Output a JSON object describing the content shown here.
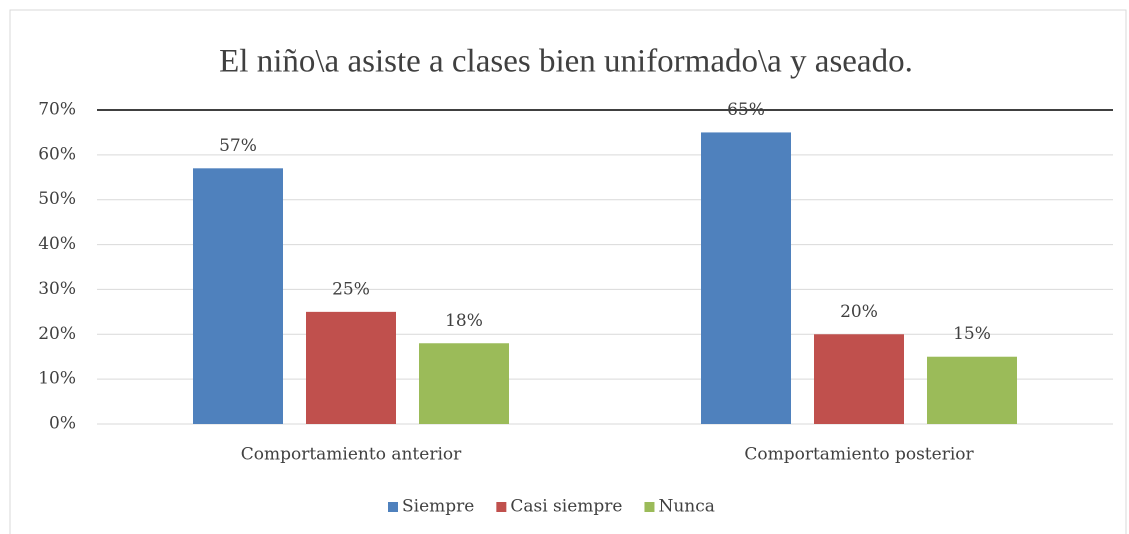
{
  "chart_data": {
    "type": "bar",
    "title": "El niño\\a asiste a clases bien uniformado\\a y aseado.",
    "categories": [
      "Comportamiento anterior",
      "Comportamiento posterior"
    ],
    "series": [
      {
        "name": "Siempre",
        "color": "#4f81bd",
        "values": [
          57,
          65
        ],
        "value_labels": [
          "57%",
          "65%"
        ]
      },
      {
        "name": "Casi siempre",
        "color": "#c0504d",
        "values": [
          25,
          20
        ],
        "value_labels": [
          "25%",
          "20%"
        ]
      },
      {
        "name": "Nunca",
        "color": "#9bbb59",
        "values": [
          18,
          15
        ],
        "value_labels": [
          "18%",
          "15%"
        ]
      }
    ],
    "ylim": [
      0,
      70
    ],
    "yticks": [
      {
        "value": 0,
        "label": "0%"
      },
      {
        "value": 10,
        "label": "10%"
      },
      {
        "value": 20,
        "label": "20%"
      },
      {
        "value": 30,
        "label": "30%"
      },
      {
        "value": 40,
        "label": "40%"
      },
      {
        "value": 50,
        "label": "50%"
      },
      {
        "value": 60,
        "label": "60%"
      },
      {
        "value": 70,
        "label": "70%"
      }
    ],
    "grid": true,
    "legend": "bottom"
  }
}
